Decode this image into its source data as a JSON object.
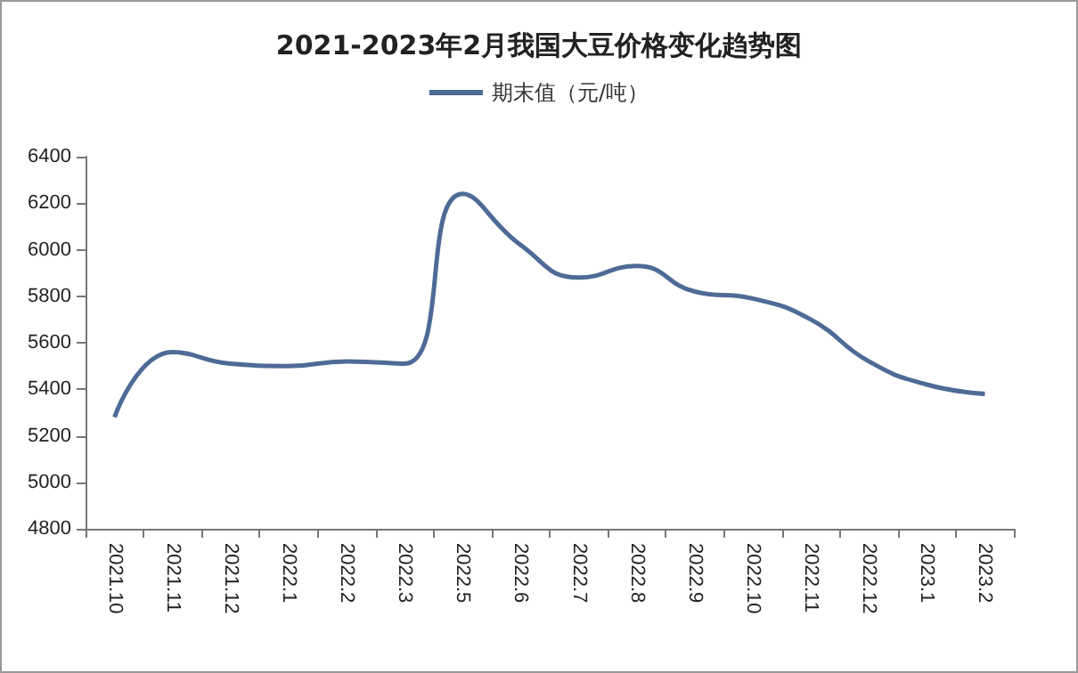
{
  "chart_data": {
    "type": "line",
    "title": "2021-2023年2月我国大豆价格变化趋势图",
    "categories": [
      "2021.10",
      "2021.11",
      "2021.12",
      "2022.1",
      "2022.2",
      "2022.3",
      "2022.5",
      "2022.6",
      "2022.7",
      "2022.8",
      "2022.9",
      "2022.10",
      "2022.11",
      "2022.12",
      "2023.1",
      "2023.2"
    ],
    "series": [
      {
        "name": "期末值（元/吨）",
        "color": "#4e6a96",
        "values": [
          5280,
          5560,
          5510,
          5500,
          5520,
          5510,
          6240,
          6020,
          5880,
          5930,
          5820,
          5790,
          5700,
          5520,
          5420,
          5380
        ]
      }
    ],
    "ylim": [
      4800,
      6400
    ],
    "yticks": [
      4800,
      5000,
      5200,
      5400,
      5600,
      5800,
      6000,
      6200,
      6400
    ],
    "grid": false,
    "legend": "top",
    "marker": "none"
  }
}
